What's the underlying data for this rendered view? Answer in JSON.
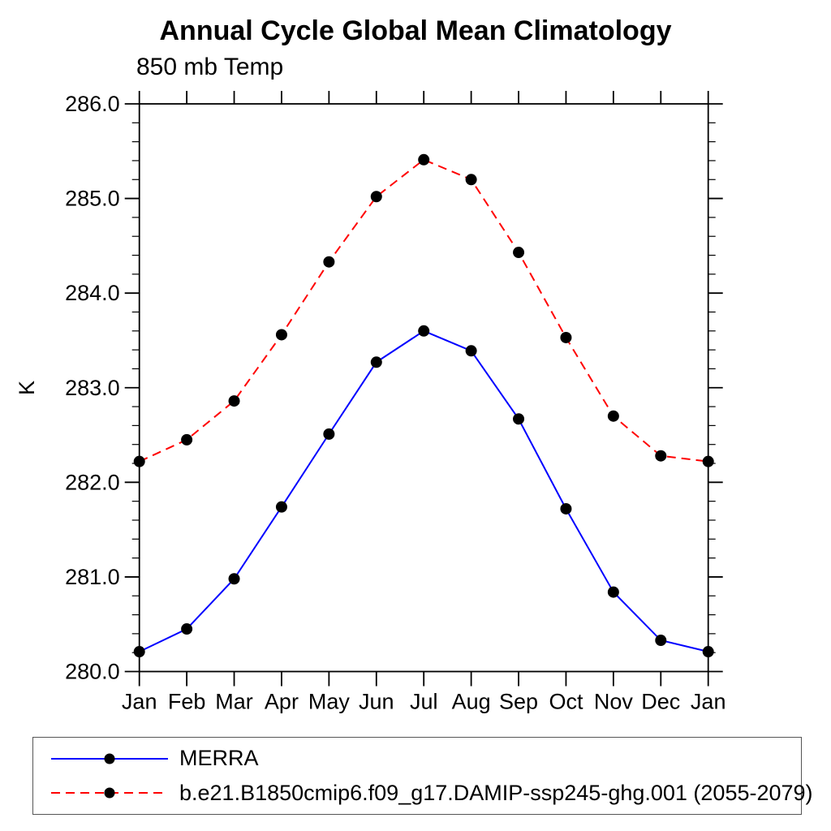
{
  "title": "Annual Cycle Global Mean Climatology",
  "subtitle": "850 mb Temp",
  "chart_data": {
    "type": "line",
    "title": "Annual Cycle Global Mean Climatology",
    "subtitle": "850 mb Temp",
    "xlabel": "",
    "ylabel": "K",
    "categories": [
      "Jan",
      "Feb",
      "Mar",
      "Apr",
      "May",
      "Jun",
      "Jul",
      "Aug",
      "Sep",
      "Oct",
      "Nov",
      "Dec",
      "Jan"
    ],
    "series": [
      {
        "name": "MERRA",
        "color": "#0000ff",
        "line_style": "solid",
        "marker": "black-dot",
        "values": [
          280.21,
          280.45,
          280.98,
          281.74,
          282.51,
          283.27,
          283.6,
          283.39,
          282.67,
          281.72,
          280.84,
          280.33,
          280.21
        ]
      },
      {
        "name": "b.e21.B1850cmip6.f09_g17.DAMIP-ssp245-ghg.001 (2055-2079)",
        "color": "#ff0000",
        "line_style": "dashed",
        "marker": "black-dot",
        "values": [
          282.22,
          282.45,
          282.86,
          283.56,
          284.33,
          285.02,
          285.41,
          285.2,
          284.43,
          283.53,
          282.7,
          282.28,
          282.22
        ]
      }
    ],
    "ylim": [
      280.0,
      286.0
    ],
    "y_tick_values": [
      280,
      281,
      282,
      283,
      284,
      285,
      286
    ],
    "y_tick_labels": [
      "280.0",
      "281.0",
      "282.0",
      "283.0",
      "284.0",
      "285.0",
      "286.0"
    ],
    "y_minor_step": 0.2,
    "grid": false,
    "legend_position": "bottom",
    "marker_color": "#000000"
  }
}
